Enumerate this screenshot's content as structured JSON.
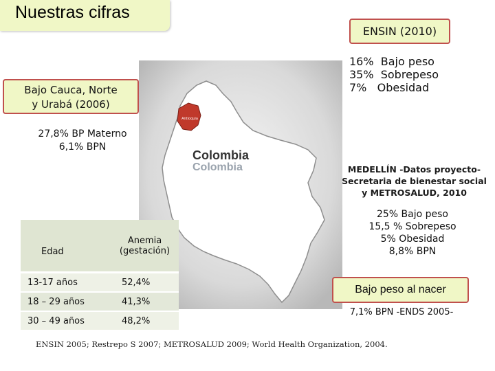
{
  "page": {
    "title": "Nuestras cifras"
  },
  "ensin_2010": {
    "label": "ENSIN (2010)",
    "items": [
      "16%  Bajo peso",
      "35%  Sobrepeso",
      "7%   Obesidad"
    ]
  },
  "bajo_cauca": {
    "label_line1": "Bajo Cauca, Norte",
    "label_line2": "y Urabá (2006)",
    "stat_line1": "27,8% BP Materno",
    "stat_line2": "6,1% BPN"
  },
  "map": {
    "label_main": "Colombia",
    "label_shadow": "Colombia",
    "city_label": "Antioquia",
    "land_color": "#ffffff",
    "region_color": "#c0392b"
  },
  "medellin": {
    "line1": "MEDELLÍN -Datos proyecto-",
    "line2": "Secretaria de bienestar social",
    "line3": "y METROSALUD, 2010",
    "stats": [
      "25% Bajo peso",
      "15,5 % Sobrepeso",
      "5% Obesidad",
      "8,8% BPN"
    ]
  },
  "anemia_table": {
    "headers": [
      "Edad",
      "Anemia",
      "(gestación)"
    ],
    "rows": [
      {
        "age": "13-17 años",
        "value": "52,4%"
      },
      {
        "age": "18 – 29 años",
        "value": "41,3%"
      },
      {
        "age": "30 – 49 años",
        "value": "48,2%"
      }
    ]
  },
  "bajo_peso_nacer": {
    "label": "Bajo peso al nacer",
    "stat": "7,1% BPN -ENDS 2005-"
  },
  "footer": {
    "sources": "ENSIN 2005; Restrepo S  2007; METROSALUD 2009; World Health Organization, 2004."
  }
}
